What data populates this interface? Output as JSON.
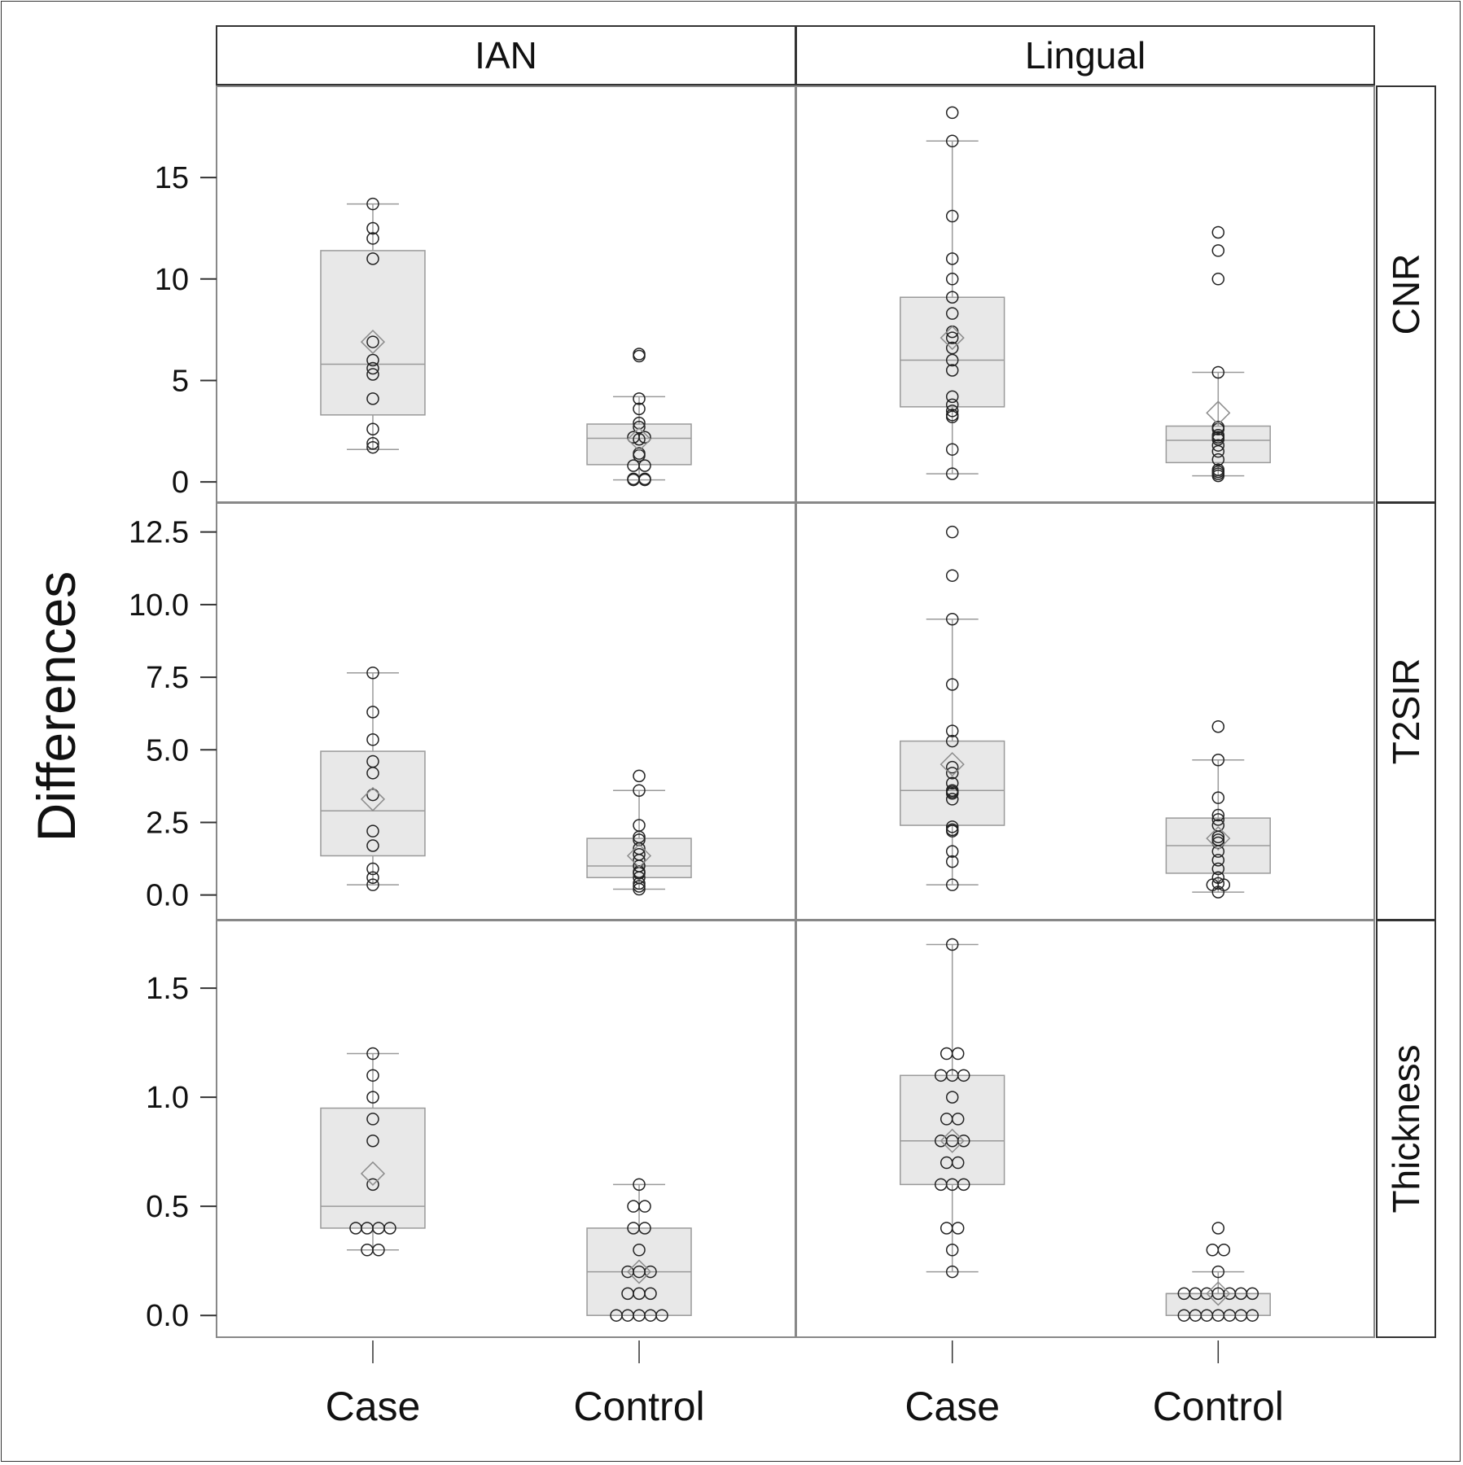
{
  "chart_data": {
    "type": "box",
    "title": "",
    "ylabel": "Differences",
    "xlabel": "",
    "columns": [
      "IAN",
      "Lingual"
    ],
    "rows": [
      "CNR",
      "T2SIR",
      "Thickness"
    ],
    "categories": [
      "Case",
      "Control"
    ],
    "grid": false,
    "legend": "none",
    "axes": {
      "CNR": {
        "ylim": [
          -1.0,
          19.5
        ],
        "ticks": [
          0,
          5,
          10,
          15
        ],
        "tick_labels": [
          "0",
          "5",
          "10",
          "15"
        ]
      },
      "T2SIR": {
        "ylim": [
          -0.85,
          13.5
        ],
        "ticks": [
          0,
          2.5,
          5,
          7.5,
          10,
          12.5
        ],
        "tick_labels": [
          "0.0",
          "2.5",
          "5.0",
          "7.5",
          "10.0",
          "12.5"
        ]
      },
      "Thickness": {
        "ylim": [
          -0.1,
          1.81
        ],
        "ticks": [
          0,
          0.5,
          1.0,
          1.5
        ],
        "tick_labels": [
          "0.0",
          "0.5",
          "1.0",
          "1.5"
        ]
      }
    },
    "panels": [
      {
        "row": "CNR",
        "column": "IAN",
        "groups": [
          {
            "category": "Case",
            "whisker_low": 1.6,
            "q1": 3.3,
            "median": 5.8,
            "q3": 11.4,
            "whisker_high": 13.7,
            "mean": 6.9,
            "points": [
              13.7,
              12.5,
              12.0,
              11.0,
              6.9,
              6.0,
              5.6,
              5.3,
              4.1,
              2.6,
              1.9,
              1.7
            ]
          },
          {
            "category": "Control",
            "whisker_low": 0.1,
            "q1": 0.85,
            "median": 2.15,
            "q3": 2.85,
            "whisker_high": 4.2,
            "mean": 2.1,
            "points": [
              6.3,
              6.2,
              4.1,
              3.6,
              2.9,
              2.7,
              2.2,
              2.2,
              2.1,
              1.4,
              1.3,
              0.8,
              0.8,
              0.15,
              0.15,
              0.1,
              0.1
            ]
          }
        ]
      },
      {
        "row": "CNR",
        "column": "Lingual",
        "groups": [
          {
            "category": "Case",
            "whisker_low": 0.4,
            "q1": 3.7,
            "median": 6.0,
            "q3": 9.1,
            "whisker_high": 16.8,
            "mean": 7.1,
            "points": [
              18.2,
              16.8,
              13.1,
              11.0,
              10.0,
              9.1,
              8.3,
              7.4,
              7.1,
              6.6,
              6.0,
              5.5,
              4.2,
              3.8,
              3.5,
              3.3,
              3.2,
              1.6,
              0.4
            ]
          },
          {
            "category": "Control",
            "whisker_low": 0.3,
            "q1": 0.95,
            "median": 2.05,
            "q3": 2.75,
            "whisker_high": 5.4,
            "mean": 3.4,
            "points": [
              12.3,
              11.4,
              10.0,
              5.4,
              2.7,
              2.6,
              2.3,
              2.2,
              2.1,
              1.8,
              1.5,
              1.1,
              0.6,
              0.5,
              0.4,
              0.3
            ]
          }
        ]
      },
      {
        "row": "T2SIR",
        "column": "IAN",
        "groups": [
          {
            "category": "Case",
            "whisker_low": 0.35,
            "q1": 1.35,
            "median": 2.9,
            "q3": 4.95,
            "whisker_high": 7.65,
            "mean": 3.3,
            "points": [
              7.65,
              6.3,
              5.35,
              4.6,
              4.2,
              3.45,
              2.2,
              1.7,
              0.9,
              0.6,
              0.35
            ]
          },
          {
            "category": "Control",
            "whisker_low": 0.2,
            "q1": 0.6,
            "median": 1.0,
            "q3": 1.95,
            "whisker_high": 3.6,
            "mean": 1.35,
            "points": [
              4.1,
              3.6,
              2.4,
              2.0,
              1.9,
              1.6,
              1.4,
              1.2,
              1.0,
              0.8,
              0.75,
              0.6,
              0.4,
              0.3,
              0.2
            ]
          }
        ]
      },
      {
        "row": "T2SIR",
        "column": "Lingual",
        "groups": [
          {
            "category": "Case",
            "whisker_low": 0.35,
            "q1": 2.4,
            "median": 3.6,
            "q3": 5.3,
            "whisker_high": 9.5,
            "mean": 4.5,
            "points": [
              12.5,
              11.0,
              9.5,
              7.25,
              5.65,
              5.3,
              4.4,
              4.2,
              3.85,
              3.6,
              3.55,
              3.5,
              3.3,
              2.35,
              2.25,
              2.2,
              1.5,
              1.15,
              0.35
            ]
          },
          {
            "category": "Control",
            "whisker_low": 0.1,
            "q1": 0.75,
            "median": 1.7,
            "q3": 2.65,
            "whisker_high": 4.65,
            "mean": 1.95,
            "points": [
              5.8,
              4.65,
              3.35,
              2.75,
              2.6,
              2.4,
              2.0,
              1.9,
              1.8,
              1.5,
              1.2,
              0.9,
              0.6,
              0.4,
              0.35,
              0.35,
              0.1
            ]
          }
        ]
      },
      {
        "row": "Thickness",
        "column": "IAN",
        "groups": [
          {
            "category": "Case",
            "whisker_low": 0.3,
            "q1": 0.4,
            "median": 0.5,
            "q3": 0.95,
            "whisker_high": 1.2,
            "mean": 0.65,
            "points": [
              1.2,
              1.1,
              1.0,
              0.9,
              0.8,
              0.6,
              0.4,
              0.4,
              0.4,
              0.4,
              0.3,
              0.3
            ]
          },
          {
            "category": "Control",
            "whisker_low": 0.0,
            "q1": 0.0,
            "median": 0.2,
            "q3": 0.4,
            "whisker_high": 0.6,
            "mean": 0.2,
            "points": [
              0.6,
              0.5,
              0.5,
              0.4,
              0.4,
              0.3,
              0.2,
              0.2,
              0.2,
              0.1,
              0.1,
              0.1,
              0.0,
              0.0,
              0.0,
              0.0,
              0.0
            ]
          }
        ]
      },
      {
        "row": "Thickness",
        "column": "Lingual",
        "groups": [
          {
            "category": "Case",
            "whisker_low": 0.2,
            "q1": 0.6,
            "median": 0.8,
            "q3": 1.1,
            "whisker_high": 1.7,
            "mean": 0.8,
            "points": [
              1.7,
              1.2,
              1.2,
              1.1,
              1.1,
              1.1,
              1.0,
              0.9,
              0.9,
              0.8,
              0.8,
              0.8,
              0.7,
              0.7,
              0.6,
              0.6,
              0.6,
              0.4,
              0.4,
              0.3,
              0.2
            ]
          },
          {
            "category": "Control",
            "whisker_low": 0.0,
            "q1": 0.0,
            "median": 0.1,
            "q3": 0.1,
            "whisker_high": 0.2,
            "mean": 0.1,
            "points": [
              0.4,
              0.3,
              0.3,
              0.2,
              0.1,
              0.1,
              0.1,
              0.1,
              0.1,
              0.1,
              0.1,
              0.0,
              0.0,
              0.0,
              0.0,
              0.0,
              0.0,
              0.0
            ]
          }
        ]
      }
    ]
  },
  "colors": {
    "box_fill": "#e8e8e8",
    "box_stroke": "#9a9a9a",
    "point_stroke": "#222222",
    "mean_marker": "#8c8c8c",
    "frame": "#333333"
  }
}
